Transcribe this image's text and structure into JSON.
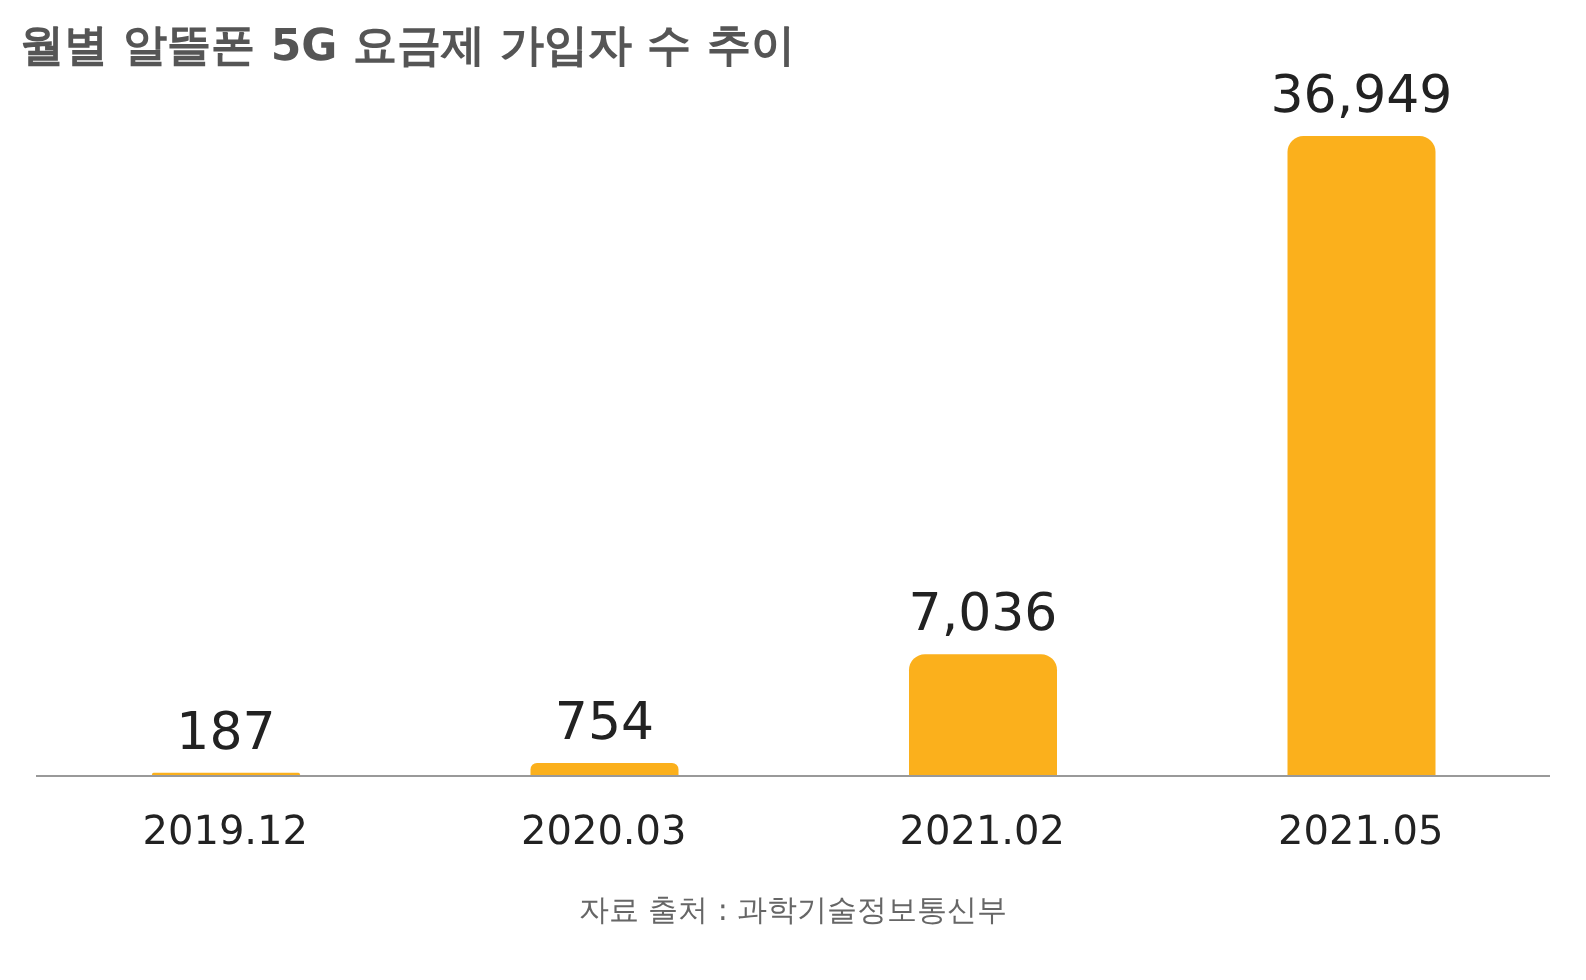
{
  "chart_data": {
    "type": "bar",
    "title": "월별 알뜰폰 5G 요금제 가입자 수 추이",
    "categories": [
      "2019.12",
      "2020.03",
      "2021.02",
      "2021.05"
    ],
    "values": [
      187,
      754,
      7036,
      36949
    ],
    "color": "#fbb01c",
    "value_labels": [
      "187",
      "754",
      "7,036",
      "36,949"
    ],
    "annotations": [
      "자료 출처 : 과학기술정보통신부"
    ]
  }
}
